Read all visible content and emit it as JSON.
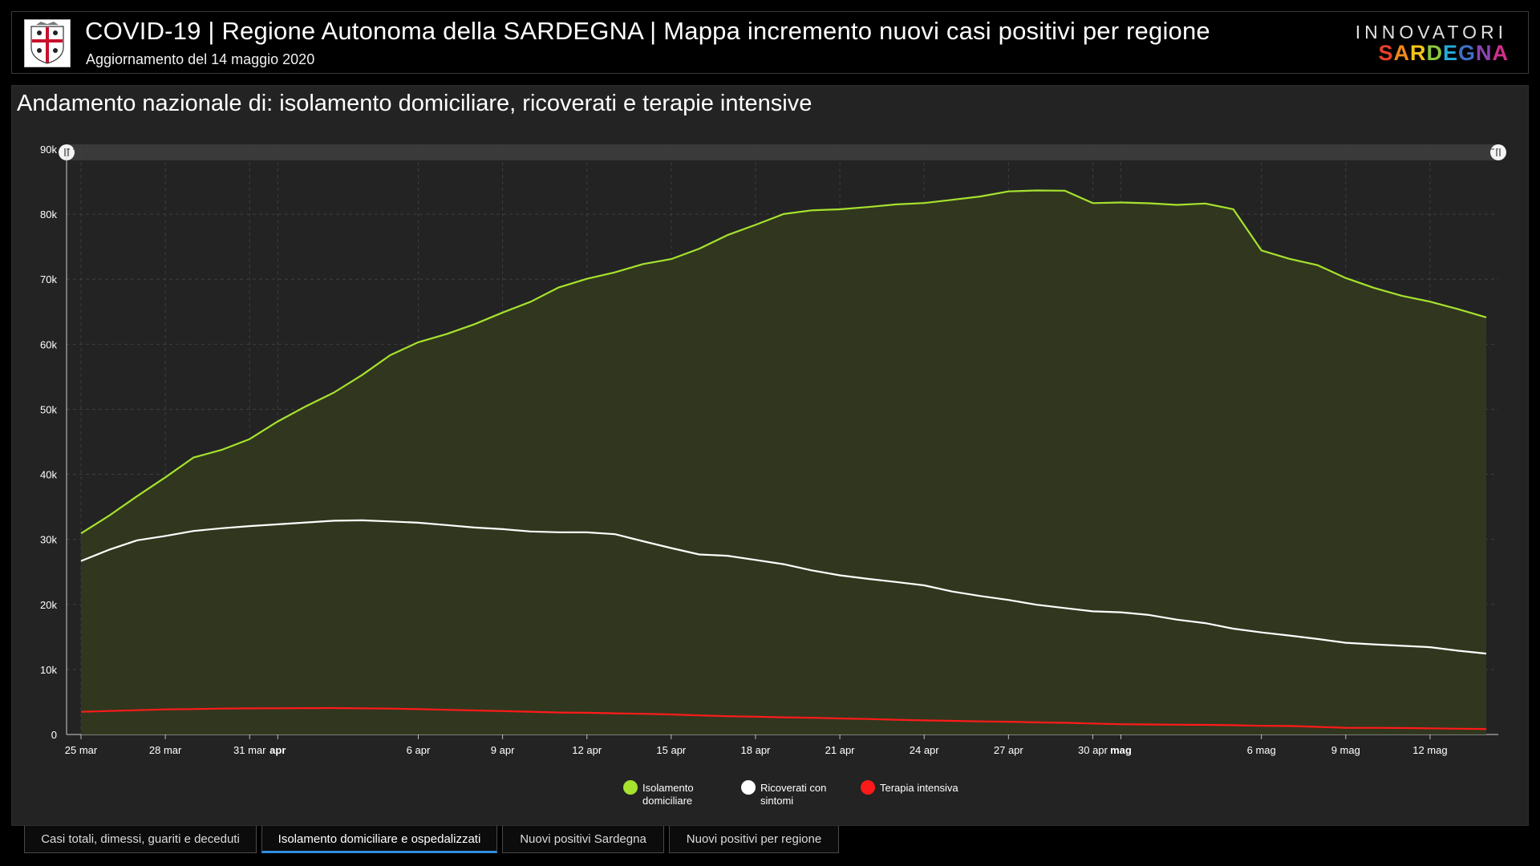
{
  "header": {
    "title": "COVID-19 | Regione Autonoma della SARDEGNA | Mappa incremento nuovi casi positivi per regione",
    "subtitle": "Aggiornamento del 14 maggio 2020",
    "brand_top": "INNOVATORI",
    "brand_bottom": "SARDEGNA"
  },
  "panel": {
    "title": "Andamento nazionale di: isolamento domiciliare, ricoverati e terapie intensive"
  },
  "tabs": [
    {
      "label": "Casi totali, dimessi, guariti e deceduti",
      "active": false
    },
    {
      "label": "Isolamento domiciliare e ospedalizzati",
      "active": true
    },
    {
      "label": "Nuovi positivi Sardegna",
      "active": false
    },
    {
      "label": "Nuovi positivi per regione",
      "active": false
    }
  ],
  "colors": {
    "isolamento": "#a6e22e",
    "ricoverati": "#ffffff",
    "terapia": "#ff1a1a",
    "area_fill": "#33391f",
    "active_tab": "#2f8fe0"
  },
  "chart_data": {
    "type": "area",
    "title": "Andamento nazionale di: isolamento domiciliare, ricoverati e terapie intensive",
    "ylim": [
      0,
      90000
    ],
    "y_ticks": [
      "0",
      "10k",
      "20k",
      "30k",
      "40k",
      "50k",
      "60k",
      "70k",
      "80k",
      "90k"
    ],
    "x_ticks": [
      {
        "label": "25 mar",
        "day": 0,
        "bold": false
      },
      {
        "label": "28 mar",
        "day": 3,
        "bold": false
      },
      {
        "label": "31 mar",
        "day": 6,
        "bold": false
      },
      {
        "label": "apr",
        "day": 7,
        "bold": true
      },
      {
        "label": "6 apr",
        "day": 12,
        "bold": false
      },
      {
        "label": "9 apr",
        "day": 15,
        "bold": false
      },
      {
        "label": "12 apr",
        "day": 18,
        "bold": false
      },
      {
        "label": "15 apr",
        "day": 21,
        "bold": false
      },
      {
        "label": "18 apr",
        "day": 24,
        "bold": false
      },
      {
        "label": "21 apr",
        "day": 27,
        "bold": false
      },
      {
        "label": "24 apr",
        "day": 30,
        "bold": false
      },
      {
        "label": "27 apr",
        "day": 33,
        "bold": false
      },
      {
        "label": "30 apr",
        "day": 36,
        "bold": false
      },
      {
        "label": "mag",
        "day": 37,
        "bold": true
      },
      {
        "label": "6 mag",
        "day": 42,
        "bold": false
      },
      {
        "label": "9 mag",
        "day": 45,
        "bold": false
      },
      {
        "label": "12 mag",
        "day": 48,
        "bold": false
      }
    ],
    "x_start_date": "2020-03-25",
    "series": [
      {
        "name": "Isolamento domiciliare",
        "color": "#a6e22e",
        "values": [
          30920,
          33648,
          36653,
          39533,
          42588,
          43752,
          45420,
          48134,
          50456,
          52579,
          55270,
          58320,
          60313,
          61557,
          63084,
          64873,
          66534,
          68744,
          70065,
          71063,
          72333,
          73094,
          74696,
          76778,
          78364,
          80031,
          80589,
          80758,
          81104,
          81510,
          81710,
          82212,
          82722,
          83504,
          83652,
          83619,
          81708,
          81800,
          81678,
          81436,
          81644,
          80770,
          74426,
          73139,
          72157,
          70187,
          68679,
          67449,
          66553,
          65392,
          64132
        ]
      },
      {
        "name": "Ricoverati con sintomi",
        "color": "#ffffff",
        "values": [
          26676,
          28403,
          29862,
          30532,
          31292,
          31712,
          32042,
          32314,
          32592,
          32863,
          32925,
          32761,
          32556,
          32203,
          31824,
          31576,
          31211,
          31087,
          31080,
          30792,
          29714,
          28663,
          27682,
          27479,
          26837,
          26189,
          25235,
          24471,
          23930,
          23450,
          22935,
          21981,
          21294,
          20690,
          19952,
          19441,
          18936,
          18787,
          18382,
          17650,
          17125,
          16270,
          15698,
          15208,
          14681,
          14100,
          13857,
          13636,
          13424,
          12883,
          12445
        ]
      },
      {
        "name": "Terapia intensiva",
        "color": "#ff1a1a",
        "values": [
          3489,
          3612,
          3732,
          3856,
          3906,
          3981,
          4023,
          4035,
          4053,
          4068,
          4023,
          3977,
          3898,
          3792,
          3693,
          3605,
          3497,
          3381,
          3343,
          3260,
          3186,
          3079,
          2936,
          2812,
          2733,
          2635,
          2573,
          2471,
          2384,
          2267,
          2173,
          2102,
          2009,
          1956,
          1863,
          1795,
          1694,
          1578,
          1539,
          1501,
          1479,
          1427,
          1333,
          1311,
          1168,
          1034,
          1027,
          999,
          952,
          893,
          855
        ]
      }
    ],
    "legend": [
      {
        "label_1": "Isolamento",
        "label_2": "domiciliare",
        "color": "#a6e22e"
      },
      {
        "label_1": "Ricoverati con",
        "label_2": "sintomi",
        "color": "#ffffff"
      },
      {
        "label_1": "Terapia intensiva",
        "label_2": "",
        "color": "#ff1a1a"
      }
    ],
    "legend_position": "bottom-center",
    "grid": true
  }
}
